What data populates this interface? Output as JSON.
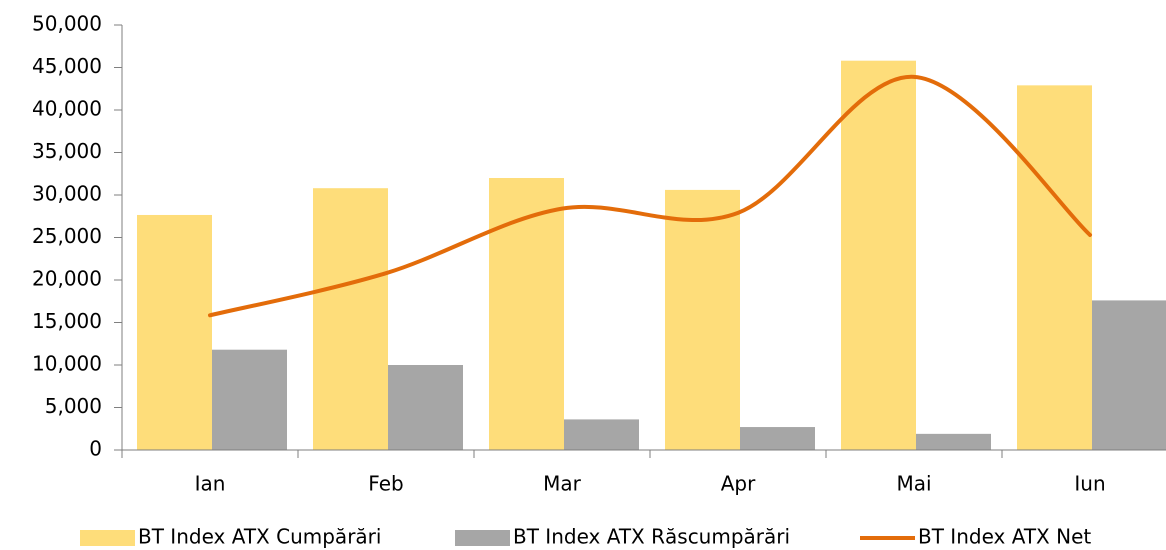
{
  "chart_data": {
    "type": "bar_line",
    "categories": [
      "Ian",
      "Feb",
      "Mar",
      "Apr",
      "Mai",
      "Iun"
    ],
    "series": [
      {
        "name": "BT Index ATX Cumpărări",
        "type": "bar",
        "color": "#fedd7a",
        "values": [
          27650,
          30800,
          32000,
          30600,
          45800,
          42900
        ]
      },
      {
        "name": "BT Index ATX Răscumpărări",
        "type": "bar",
        "color": "#a6a6a6",
        "values": [
          11800,
          10000,
          3600,
          2700,
          1900,
          17600
        ]
      },
      {
        "name": "BT Index ATX Net",
        "type": "line",
        "color": "#e36c0a",
        "values": [
          15850,
          20800,
          28400,
          27900,
          43900,
          25300
        ]
      }
    ],
    "ylim": [
      0,
      50000
    ],
    "yticks": [
      0,
      {
        "value": 5000,
        "label": "5,000"
      },
      {
        "value": 10000,
        "label": "10,000"
      },
      {
        "value": 15000,
        "label": "15,000"
      },
      {
        "value": 20000,
        "label": "20,000"
      },
      {
        "value": 25000,
        "label": "25,000"
      },
      {
        "value": 30000,
        "label": "30,000"
      },
      {
        "value": 35000,
        "label": "35,000"
      },
      {
        "value": 40000,
        "label": "40,000"
      },
      {
        "value": 45000,
        "label": "45,000"
      },
      {
        "value": 50000,
        "label": "50,000"
      }
    ],
    "legend": "bottom",
    "smooth": true
  }
}
